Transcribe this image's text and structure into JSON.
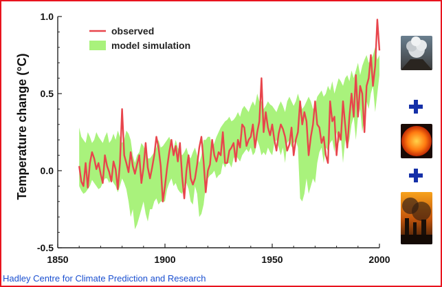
{
  "credit": "Hadley Centre for Climate Prediction and Research",
  "colors": {
    "observed": "#e8454c",
    "model": "#a9f27c",
    "frame": "#e8141e",
    "plus": "#1530a8",
    "credit": "#1a4fd0"
  },
  "side_panel": {
    "images": [
      "volcano-eruption-image",
      "sun-image",
      "industrial-smoke-image"
    ],
    "separators": [
      "plus-icon",
      "plus-icon"
    ]
  },
  "chart_data": {
    "type": "line",
    "title": "",
    "xlabel": "",
    "ylabel": "Temperature change (°C)",
    "xlim": [
      1850,
      2000
    ],
    "ylim": [
      -0.5,
      1.0
    ],
    "xticks": [
      "1850",
      "1900",
      "1950",
      "2000"
    ],
    "yticks": [
      "-0.5",
      "0.0",
      "0.5",
      "1.0"
    ],
    "legend": {
      "position": "top-left",
      "entries": [
        "observed",
        "model simulation"
      ]
    },
    "x": [
      1860,
      1861,
      1862,
      1863,
      1864,
      1865,
      1866,
      1867,
      1868,
      1869,
      1870,
      1871,
      1872,
      1873,
      1874,
      1875,
      1876,
      1877,
      1878,
      1879,
      1880,
      1881,
      1882,
      1883,
      1884,
      1885,
      1886,
      1887,
      1888,
      1889,
      1890,
      1891,
      1892,
      1893,
      1894,
      1895,
      1896,
      1897,
      1898,
      1899,
      1900,
      1901,
      1902,
      1903,
      1904,
      1905,
      1906,
      1907,
      1908,
      1909,
      1910,
      1911,
      1912,
      1913,
      1914,
      1915,
      1916,
      1917,
      1918,
      1919,
      1920,
      1921,
      1922,
      1923,
      1924,
      1925,
      1926,
      1927,
      1928,
      1929,
      1930,
      1931,
      1932,
      1933,
      1934,
      1935,
      1936,
      1937,
      1938,
      1939,
      1940,
      1941,
      1942,
      1943,
      1944,
      1945,
      1946,
      1947,
      1948,
      1949,
      1950,
      1951,
      1952,
      1953,
      1954,
      1955,
      1956,
      1957,
      1958,
      1959,
      1960,
      1961,
      1962,
      1963,
      1964,
      1965,
      1966,
      1967,
      1968,
      1969,
      1970,
      1971,
      1972,
      1973,
      1974,
      1975,
      1976,
      1977,
      1978,
      1979,
      1980,
      1981,
      1982,
      1983,
      1984,
      1985,
      1986,
      1987,
      1988,
      1989,
      1990,
      1991,
      1992,
      1993,
      1994,
      1995,
      1996,
      1997,
      1998,
      1999,
      2000
    ],
    "series": [
      {
        "name": "observed",
        "values": [
          0.03,
          -0.07,
          -0.1,
          0.05,
          -0.11,
          0.05,
          0.12,
          0.08,
          0.01,
          0.05,
          -0.02,
          -0.08,
          0.1,
          0.03,
          -0.01,
          -0.07,
          0.06,
          0.01,
          -0.12,
          0.05,
          0.4,
          0.1,
          0.05,
          -0.01,
          0.12,
          0.03,
          -0.02,
          0.04,
          0.1,
          -0.08,
          0.02,
          0.18,
          0.02,
          -0.05,
          0.02,
          0.1,
          0.22,
          0.15,
          0.03,
          -0.2,
          -0.1,
          0.02,
          0.12,
          0.2,
          0.1,
          0.16,
          0.06,
          0.18,
          -0.04,
          -0.18,
          0.0,
          0.1,
          -0.05,
          -0.09,
          -0.05,
          0.04,
          0.15,
          0.22,
          0.06,
          -0.14,
          0.0,
          0.04,
          0.2,
          0.1,
          0.06,
          0.12,
          0.1,
          0.25,
          0.05,
          0.05,
          0.13,
          0.15,
          0.18,
          0.06,
          0.2,
          0.15,
          0.3,
          0.28,
          0.16,
          0.2,
          0.22,
          0.3,
          0.15,
          0.25,
          0.32,
          0.6,
          0.25,
          0.38,
          0.28,
          0.23,
          0.3,
          0.2,
          0.13,
          0.24,
          0.3,
          0.27,
          0.22,
          0.13,
          0.17,
          0.28,
          0.1,
          0.2,
          0.25,
          0.45,
          0.3,
          0.38,
          0.32,
          0.1,
          0.22,
          0.3,
          0.45,
          0.3,
          0.28,
          0.18,
          0.22,
          0.1,
          0.05,
          0.45,
          0.32,
          0.35,
          0.1,
          0.25,
          0.2,
          0.45,
          0.3,
          0.15,
          0.35,
          0.5,
          0.35,
          0.62,
          0.35,
          0.55,
          0.5,
          0.25,
          0.55,
          0.6,
          0.75,
          0.55,
          0.68,
          0.98,
          0.78
        ]
      },
      {
        "name": "model simulation",
        "lower": [
          -0.1,
          -0.13,
          -0.15,
          -0.14,
          -0.12,
          -0.1,
          -0.06,
          -0.08,
          -0.1,
          -0.12,
          -0.11,
          -0.08,
          -0.05,
          -0.05,
          -0.08,
          -0.05,
          -0.08,
          -0.1,
          -0.14,
          -0.1,
          -0.05,
          -0.08,
          -0.12,
          -0.2,
          -0.3,
          -0.25,
          -0.38,
          -0.35,
          -0.3,
          -0.25,
          -0.2,
          -0.28,
          -0.33,
          -0.25,
          -0.25,
          -0.2,
          -0.18,
          -0.22,
          -0.2,
          -0.2,
          -0.2,
          -0.12,
          -0.08,
          -0.05,
          -0.1,
          -0.08,
          -0.12,
          -0.14,
          -0.15,
          -0.1,
          -0.08,
          -0.12,
          -0.2,
          -0.22,
          -0.1,
          -0.15,
          -0.3,
          -0.28,
          -0.22,
          -0.1,
          -0.05,
          -0.03,
          -0.02,
          0.0,
          -0.05,
          -0.03,
          -0.02,
          0.05,
          0.02,
          0.05,
          0.05,
          0.02,
          0.08,
          0.1,
          0.08,
          0.06,
          0.1,
          0.12,
          0.14,
          0.12,
          0.15,
          0.1,
          0.12,
          0.2,
          0.16,
          0.1,
          0.12,
          0.1,
          0.15,
          0.12,
          0.1,
          0.18,
          0.2,
          0.15,
          0.1,
          0.15,
          0.05,
          0.18,
          0.2,
          0.15,
          0.18,
          0.2,
          0.15,
          -0.18,
          -0.2,
          -0.15,
          -0.05,
          -0.15,
          -0.1,
          -0.05,
          -0.08,
          0.05,
          0.12,
          0.15,
          0.05,
          0.15,
          0.13,
          0.18,
          0.2,
          0.12,
          0.25,
          0.18,
          0.22,
          0.05,
          0.2,
          0.15,
          0.2,
          0.3,
          0.35,
          0.2,
          0.35,
          0.4,
          0.25,
          0.35,
          0.45,
          0.4,
          0.5,
          0.55,
          0.38,
          0.5,
          0.62
        ],
        "upper": [
          0.28,
          0.22,
          0.2,
          0.18,
          0.25,
          0.22,
          0.18,
          0.2,
          0.25,
          0.22,
          0.2,
          0.18,
          0.22,
          0.25,
          0.18,
          0.2,
          0.24,
          0.2,
          0.26,
          0.22,
          0.18,
          0.2,
          0.26,
          0.24,
          0.2,
          0.1,
          0.05,
          0.1,
          0.12,
          0.18,
          0.16,
          0.12,
          0.08,
          0.08,
          0.1,
          0.12,
          0.15,
          0.2,
          0.15,
          0.16,
          0.18,
          0.2,
          0.22,
          0.18,
          0.14,
          0.2,
          0.15,
          0.12,
          0.1,
          0.12,
          0.15,
          0.1,
          0.08,
          0.12,
          0.15,
          0.1,
          0.05,
          0.1,
          0.2,
          0.2,
          0.22,
          0.22,
          0.15,
          0.18,
          0.22,
          0.25,
          0.28,
          0.3,
          0.32,
          0.33,
          0.35,
          0.32,
          0.33,
          0.35,
          0.38,
          0.35,
          0.4,
          0.42,
          0.4,
          0.38,
          0.42,
          0.45,
          0.42,
          0.5,
          0.45,
          0.45,
          0.4,
          0.42,
          0.45,
          0.43,
          0.42,
          0.4,
          0.38,
          0.42,
          0.45,
          0.42,
          0.38,
          0.45,
          0.48,
          0.45,
          0.42,
          0.45,
          0.5,
          0.45,
          0.4,
          0.42,
          0.45,
          0.48,
          0.45,
          0.4,
          0.42,
          0.48,
          0.5,
          0.52,
          0.48,
          0.5,
          0.55,
          0.52,
          0.58,
          0.5,
          0.55,
          0.6,
          0.58,
          0.55,
          0.6,
          0.62,
          0.58,
          0.65,
          0.6,
          0.65,
          0.7,
          0.62,
          0.68,
          0.72,
          0.75,
          0.7,
          0.72,
          0.75,
          0.8,
          0.72,
          0.75
        ]
      }
    ]
  }
}
